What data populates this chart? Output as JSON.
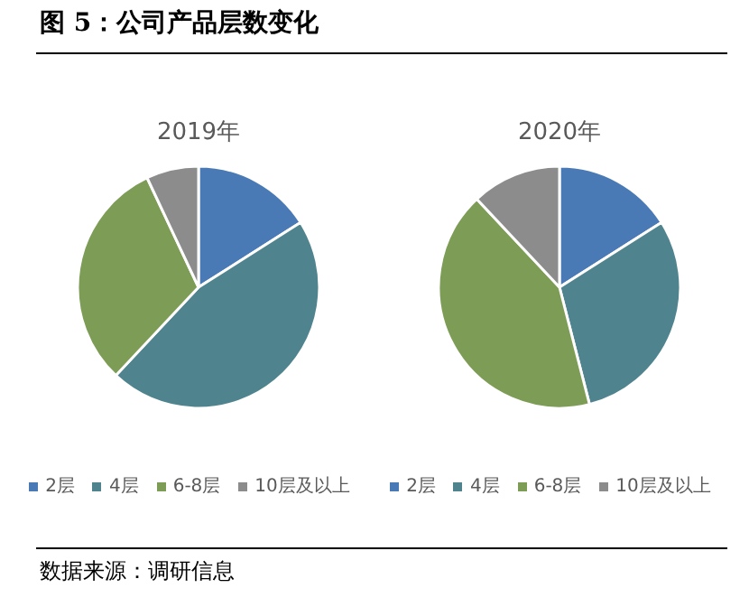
{
  "chart_data": [
    {
      "type": "pie",
      "title": "2019年",
      "categories": [
        "2层",
        "4层",
        "6-8层",
        "10层及以上"
      ],
      "values": [
        16,
        46,
        31,
        7
      ],
      "colors": [
        "#4a7ab5",
        "#4f848f",
        "#7d9c55",
        "#8c8c8c"
      ],
      "legend": "bottom",
      "annotations": [
        "图 5：公司产品层数变化",
        "数据来源：调研信息"
      ]
    },
    {
      "type": "pie",
      "title": "2020年",
      "categories": [
        "2层",
        "4层",
        "6-8层",
        "10层及以上"
      ],
      "values": [
        16,
        30,
        42,
        12
      ],
      "colors": [
        "#4a7ab5",
        "#4f848f",
        "#7d9c55",
        "#8c8c8c"
      ],
      "legend": "bottom"
    }
  ]
}
